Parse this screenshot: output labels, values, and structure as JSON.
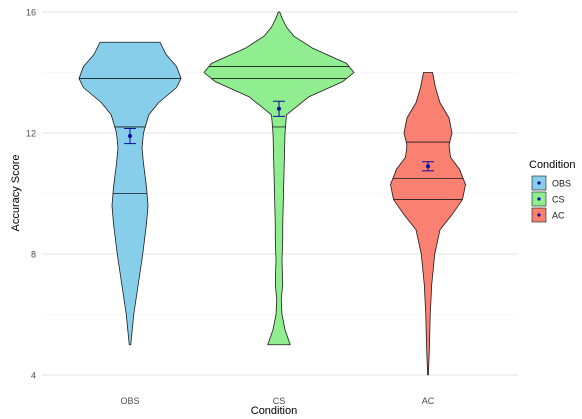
{
  "chart_data": {
    "type": "violin",
    "title": "",
    "xlabel": "Condition",
    "ylabel": "Accuracy Score",
    "ylim": [
      4,
      16
    ],
    "yticks": [
      4,
      8,
      12,
      16
    ],
    "grid": true,
    "legend_position": "right",
    "legend_title": "Condition",
    "categories": [
      "OBS",
      "CS",
      "AC"
    ],
    "series": [
      {
        "name": "OBS",
        "color": "#87CEEB",
        "min": 5,
        "max": 15,
        "quartiles": [
          10,
          12.2,
          13.8
        ],
        "mean": 11.9,
        "se": 0.25,
        "density": [
          [
            5,
            0.01
          ],
          [
            6,
            0.05
          ],
          [
            7,
            0.11
          ],
          [
            8,
            0.17
          ],
          [
            9,
            0.22
          ],
          [
            9.6,
            0.24
          ],
          [
            10.2,
            0.22
          ],
          [
            11,
            0.18
          ],
          [
            11.5,
            0.16
          ],
          [
            12,
            0.18
          ],
          [
            12.6,
            0.25
          ],
          [
            13,
            0.38
          ],
          [
            13.5,
            0.62
          ],
          [
            13.8,
            0.68
          ],
          [
            14.2,
            0.62
          ],
          [
            14.6,
            0.48
          ],
          [
            15,
            0.4
          ]
        ]
      },
      {
        "name": "CS",
        "color": "#90EE90",
        "min": 5,
        "max": 16,
        "quartiles": [
          12.2,
          13.8,
          14.2
        ],
        "mean": 12.8,
        "se": 0.25,
        "density": [
          [
            5,
            0.15
          ],
          [
            5.5,
            0.08
          ],
          [
            6,
            0.04
          ],
          [
            6.5,
            0.03
          ],
          [
            7,
            0.05
          ],
          [
            7.8,
            0.04
          ],
          [
            8.5,
            0.05
          ],
          [
            9,
            0.05
          ],
          [
            10,
            0.06
          ],
          [
            11,
            0.07
          ],
          [
            12,
            0.08
          ],
          [
            12.6,
            0.1
          ],
          [
            13.2,
            0.4
          ],
          [
            13.7,
            0.85
          ],
          [
            14,
            1.0
          ],
          [
            14.3,
            0.9
          ],
          [
            14.8,
            0.45
          ],
          [
            15.2,
            0.2
          ],
          [
            15.5,
            0.1
          ],
          [
            15.8,
            0.04
          ],
          [
            16,
            0.01
          ]
        ]
      },
      {
        "name": "AC",
        "color": "#FA8072",
        "min": 4,
        "max": 14,
        "quartiles": [
          9.8,
          10.5,
          11.7
        ],
        "mean": 10.9,
        "se": 0.15,
        "density": [
          [
            4,
            0.005
          ],
          [
            5,
            0.02
          ],
          [
            6,
            0.03
          ],
          [
            7,
            0.05
          ],
          [
            8,
            0.09
          ],
          [
            8.8,
            0.16
          ],
          [
            9.3,
            0.32
          ],
          [
            9.8,
            0.46
          ],
          [
            10.3,
            0.5
          ],
          [
            10.8,
            0.42
          ],
          [
            11.2,
            0.3
          ],
          [
            11.6,
            0.28
          ],
          [
            12,
            0.32
          ],
          [
            12.5,
            0.28
          ],
          [
            13,
            0.16
          ],
          [
            13.5,
            0.1
          ],
          [
            14,
            0.06
          ]
        ]
      }
    ]
  }
}
